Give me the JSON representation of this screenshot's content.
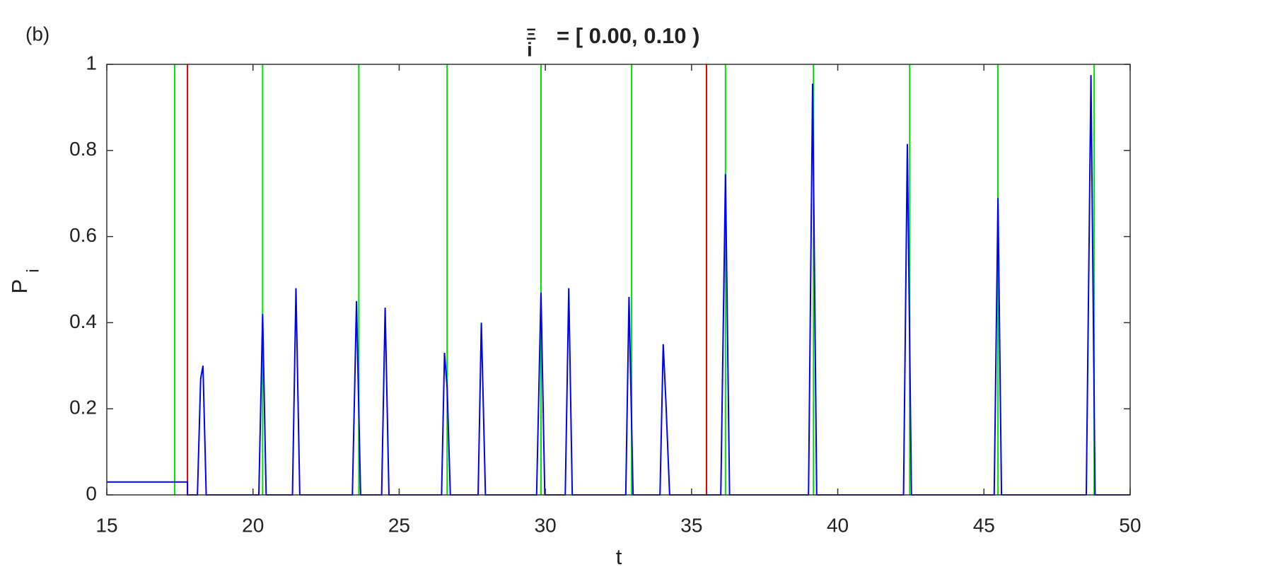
{
  "chart_data": {
    "type": "line",
    "panel_label": "(b)",
    "title_symbol": "Ξ",
    "title_subscript": "i",
    "title_rest": "= [ 0.00, 0.10 )",
    "xlabel": "t",
    "ylabel": "P",
    "ylabel_subscript": "i",
    "xlim": [
      15,
      50
    ],
    "xticks": [
      15,
      20,
      25,
      30,
      35,
      40,
      45,
      50
    ],
    "ylim": [
      0,
      1
    ],
    "yticks": [
      0,
      0.2,
      0.4,
      0.6,
      0.8,
      1
    ],
    "vlines": [
      {
        "color": "#00e000",
        "x": [
          17.32,
          20.33,
          23.62,
          26.64,
          29.85,
          32.95,
          36.16,
          39.17,
          42.46,
          45.48,
          48.77
        ]
      },
      {
        "color": "#e00000",
        "x": [
          17.76,
          35.51
        ]
      }
    ],
    "series": [
      {
        "color": "#0000ff",
        "x": [
          15,
          17.76,
          17.76,
          18.1,
          18.21,
          18.29,
          18.4,
          20.2,
          20.33,
          20.45,
          21.35,
          21.47,
          21.6,
          23.4,
          23.54,
          23.68,
          24.4,
          24.52,
          24.65,
          26.45,
          26.55,
          26.64,
          26.75,
          27.7,
          27.81,
          27.95,
          29.7,
          29.85,
          29.98,
          30.68,
          30.8,
          30.92,
          32.75,
          32.86,
          33.0,
          33.92,
          34.03,
          34.12,
          34.25,
          36.0,
          36.16,
          36.3,
          39.0,
          39.14,
          39.28,
          42.25,
          42.38,
          42.52,
          45.35,
          45.48,
          45.6,
          48.5,
          48.66,
          48.8,
          50
        ],
        "values": [
          0.03,
          0.03,
          0,
          0,
          0.27,
          0.3,
          0,
          0,
          0.42,
          0,
          0,
          0.48,
          0,
          0,
          0.45,
          0,
          0,
          0.435,
          0,
          0,
          0.33,
          0.25,
          0,
          0,
          0.4,
          0,
          0,
          0.47,
          0,
          0,
          0.48,
          0,
          0,
          0.46,
          0,
          0,
          0.35,
          0.22,
          0,
          0,
          0.745,
          0,
          0,
          0.955,
          0,
          0,
          0.815,
          0,
          0,
          0.69,
          0,
          0,
          0.975,
          0,
          0
        ]
      }
    ]
  }
}
